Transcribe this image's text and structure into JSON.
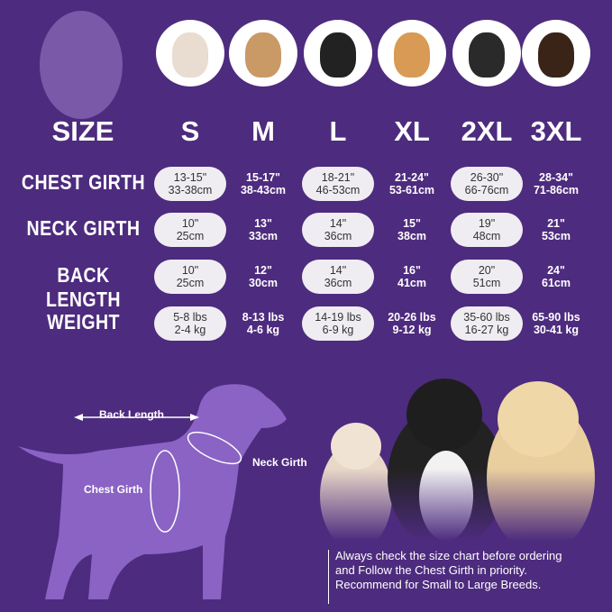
{
  "colors": {
    "background": "#4d2b7e",
    "pill": "#efedf1",
    "silhouette": "#8a63c4"
  },
  "header": {
    "size_label": "SIZE",
    "sizes": [
      "S",
      "M",
      "L",
      "XL",
      "2XL",
      "3XL"
    ]
  },
  "rows": [
    {
      "label": "CHEST GIRTH",
      "values": [
        [
          "13-15\"",
          "33-38cm"
        ],
        [
          "15-17\"",
          "38-43cm"
        ],
        [
          "18-21\"",
          "46-53cm"
        ],
        [
          "21-24\"",
          "53-61cm"
        ],
        [
          "26-30\"",
          "66-76cm"
        ],
        [
          "28-34\"",
          "71-86cm"
        ]
      ]
    },
    {
      "label": "NECK GIRTH",
      "values": [
        [
          "10\"",
          "25cm"
        ],
        [
          "13\"",
          "33cm"
        ],
        [
          "14\"",
          "36cm"
        ],
        [
          "15\"",
          "38cm"
        ],
        [
          "19\"",
          "48cm"
        ],
        [
          "21\"",
          "53cm"
        ]
      ]
    },
    {
      "label": "BACK LENGTH",
      "values": [
        [
          "10\"",
          "25cm"
        ],
        [
          "12\"",
          "30cm"
        ],
        [
          "14\"",
          "36cm"
        ],
        [
          "16\"",
          "41cm"
        ],
        [
          "20\"",
          "51cm"
        ],
        [
          "24\"",
          "61cm"
        ]
      ]
    },
    {
      "label": "WEIGHT",
      "values": [
        [
          "5-8 lbs",
          "2-4 kg"
        ],
        [
          "8-13 lbs",
          "4-6 kg"
        ],
        [
          "14-19 lbs",
          "6-9 kg"
        ],
        [
          "20-26 lbs",
          "9-12 kg"
        ],
        [
          "35-60 lbs",
          "16-27 kg"
        ],
        [
          "65-90 lbs",
          "30-41 kg"
        ]
      ]
    }
  ],
  "diagram": {
    "back_length": "Back Length",
    "neck_girth": "Neck Girth",
    "chest_girth": "Chest Girth"
  },
  "note": {
    "line1": "Always check the size chart before ordering",
    "line2": "and Follow the Chest Girth in priority.",
    "line3": "Recommend for Small to Large Breeds."
  }
}
